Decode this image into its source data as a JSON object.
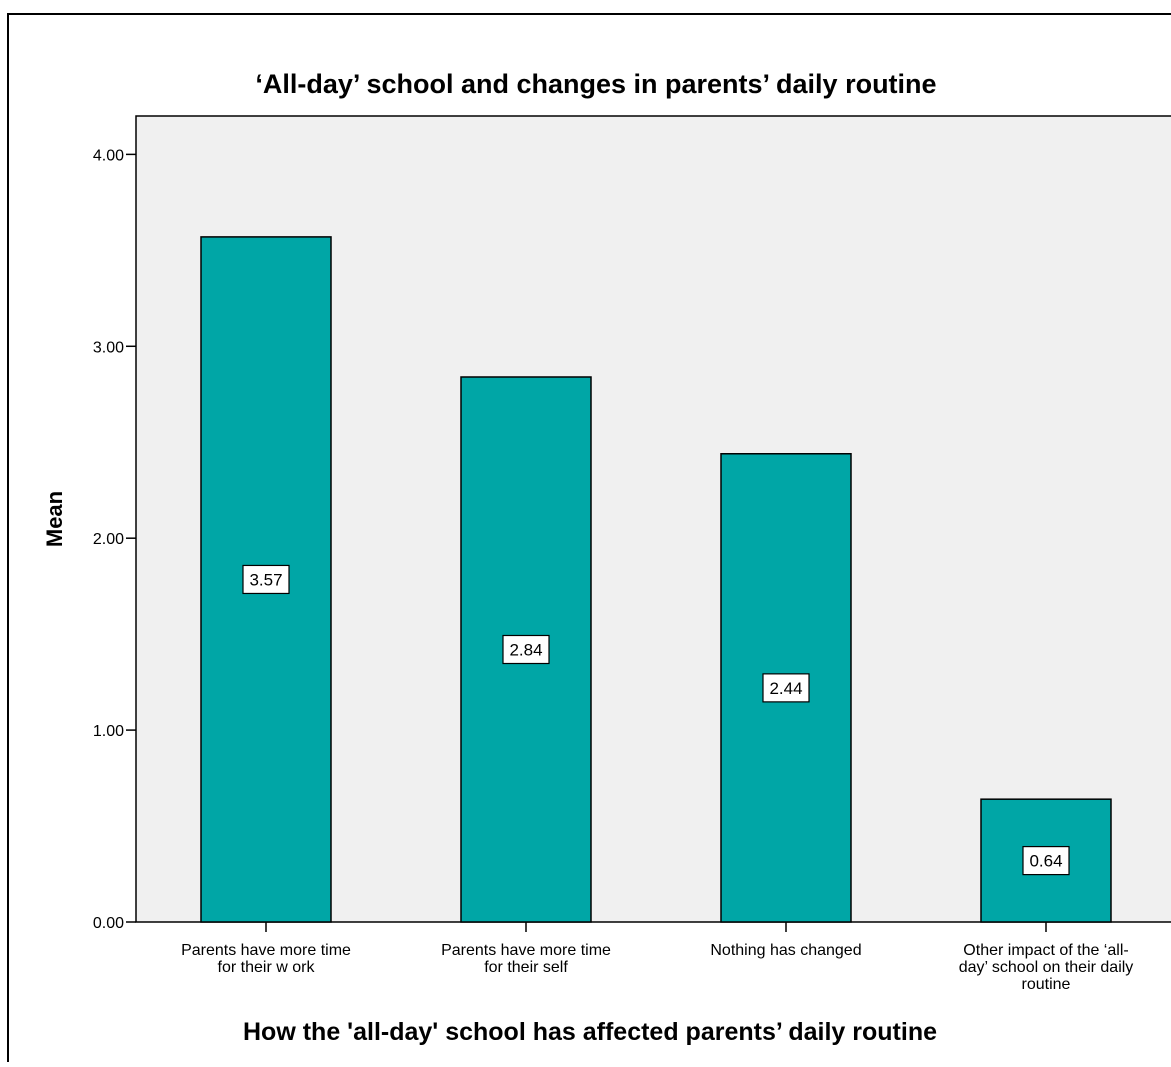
{
  "colors": {
    "bar_fill": "#00a6a6",
    "plot_background": "#f0f0f0",
    "outline": "#000000"
  },
  "chart_data": {
    "type": "bar",
    "title": "‘All-day’ school and changes in parents’ daily routine",
    "xlabel": "How the 'all-day' school has affected parents’ daily routine",
    "ylabel": "Mean",
    "ylim": [
      0,
      4.2
    ],
    "yticks": [
      0,
      1,
      2,
      3,
      4
    ],
    "ytick_labels": [
      "0.00",
      "1.00",
      "2.00",
      "3.00",
      "4.00"
    ],
    "categories": [
      [
        "Parents have more time",
        "for their w ork"
      ],
      [
        "Parents have more time",
        "for their self"
      ],
      [
        "Nothing  has changed"
      ],
      [
        "Other impact of the ‘all-",
        "day’ school on their daily",
        "routine"
      ]
    ],
    "values": [
      3.57,
      2.84,
      2.44,
      0.64
    ],
    "data_labels": [
      "3.57",
      "2.84",
      "2.44",
      "0.64"
    ],
    "grid": false,
    "legend": "none"
  }
}
